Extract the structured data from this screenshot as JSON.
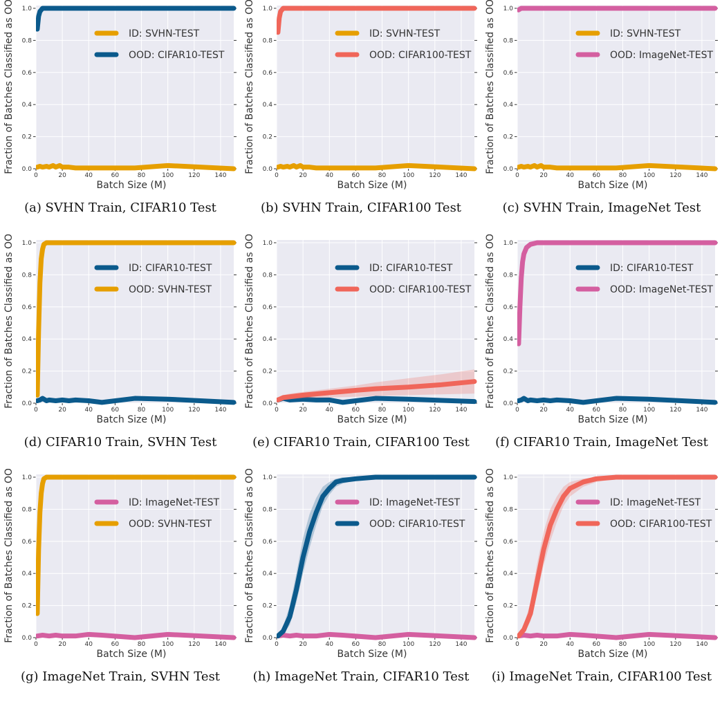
{
  "colors": {
    "svhn": "#e69f00",
    "cifar10": "#0b5a8c",
    "cifar100": "#f0665a",
    "imagenet": "#d45fa0",
    "plot_bg": "#eaeaf2",
    "grid": "#ffffff"
  },
  "chart_data": [
    {
      "type": "line",
      "caption": "(a) SVHN Train, CIFAR10 Test",
      "xlabel": "Batch Size (M)",
      "ylabel": "Fraction of Batches Classified as OOD",
      "xlim": [
        0,
        150
      ],
      "ylim": [
        0,
        1.0
      ],
      "xticks": [
        0,
        20,
        40,
        60,
        80,
        100,
        120,
        140
      ],
      "yticks": [
        0.0,
        0.2,
        0.4,
        0.6,
        0.8,
        1.0
      ],
      "grid": true,
      "legend": "top-right",
      "series": [
        {
          "name": "ID: SVHN-TEST",
          "color": "#e69f00",
          "x": [
            1,
            3,
            5,
            8,
            10,
            13,
            15,
            18,
            20,
            25,
            30,
            40,
            50,
            75,
            100,
            150
          ],
          "y": [
            0.01,
            0.015,
            0.01,
            0.015,
            0.01,
            0.02,
            0.01,
            0.02,
            0.01,
            0.01,
            0.005,
            0.005,
            0.005,
            0.005,
            0.02,
            0.0
          ]
        },
        {
          "name": "OOD: CIFAR10-TEST",
          "color": "#0b5a8c",
          "x": [
            1,
            2,
            3,
            5,
            8,
            10,
            15,
            20,
            40,
            60,
            100,
            150
          ],
          "y": [
            0.87,
            0.95,
            0.98,
            1.0,
            1.0,
            1.0,
            1.0,
            1.0,
            1.0,
            1.0,
            1.0,
            1.0
          ]
        }
      ]
    },
    {
      "type": "line",
      "caption": "(b) SVHN Train, CIFAR100 Test",
      "xlabel": "Batch Size (M)",
      "ylabel": "Fraction of Batches Classified as OOD",
      "xlim": [
        0,
        150
      ],
      "ylim": [
        0,
        1.0
      ],
      "xticks": [
        0,
        20,
        40,
        60,
        80,
        100,
        120,
        140
      ],
      "yticks": [
        0.0,
        0.2,
        0.4,
        0.6,
        0.8,
        1.0
      ],
      "grid": true,
      "legend": "top-right",
      "series": [
        {
          "name": "ID: SVHN-TEST",
          "color": "#e69f00",
          "x": [
            1,
            3,
            5,
            8,
            10,
            13,
            15,
            18,
            20,
            25,
            30,
            40,
            50,
            75,
            100,
            150
          ],
          "y": [
            0.01,
            0.015,
            0.01,
            0.015,
            0.01,
            0.02,
            0.01,
            0.02,
            0.01,
            0.01,
            0.005,
            0.005,
            0.005,
            0.005,
            0.02,
            0.0
          ]
        },
        {
          "name": "OOD: CIFAR100-TEST",
          "color": "#f0665a",
          "x": [
            1,
            2,
            3,
            5,
            8,
            10,
            15,
            20,
            40,
            60,
            100,
            150
          ],
          "y": [
            0.85,
            0.94,
            0.98,
            1.0,
            1.0,
            1.0,
            1.0,
            1.0,
            1.0,
            1.0,
            1.0,
            1.0
          ]
        }
      ]
    },
    {
      "type": "line",
      "caption": "(c) SVHN Train, ImageNet Test",
      "xlabel": "Batch Size (M)",
      "ylabel": "Fraction of Batches Classified as OOD",
      "xlim": [
        0,
        150
      ],
      "ylim": [
        0,
        1.0
      ],
      "xticks": [
        0,
        20,
        40,
        60,
        80,
        100,
        120,
        140
      ],
      "yticks": [
        0.0,
        0.2,
        0.4,
        0.6,
        0.8,
        1.0
      ],
      "grid": true,
      "legend": "top-right",
      "series": [
        {
          "name": "ID: SVHN-TEST",
          "color": "#e69f00",
          "x": [
            1,
            3,
            5,
            8,
            10,
            13,
            15,
            18,
            20,
            25,
            30,
            40,
            50,
            75,
            100,
            150
          ],
          "y": [
            0.01,
            0.015,
            0.01,
            0.015,
            0.01,
            0.02,
            0.01,
            0.02,
            0.01,
            0.01,
            0.005,
            0.005,
            0.005,
            0.005,
            0.02,
            0.0
          ]
        },
        {
          "name": "OOD: ImageNet-TEST",
          "color": "#d45fa0",
          "x": [
            1,
            3,
            5,
            10,
            20,
            40,
            60,
            100,
            150
          ],
          "y": [
            0.99,
            1.0,
            1.0,
            1.0,
            1.0,
            1.0,
            1.0,
            1.0,
            1.0
          ]
        }
      ]
    },
    {
      "type": "line",
      "caption": "(d) CIFAR10 Train, SVHN Test",
      "xlabel": "Batch Size (M)",
      "ylabel": "Fraction of Batches Classified as OOD",
      "xlim": [
        0,
        150
      ],
      "ylim": [
        0,
        1.0
      ],
      "xticks": [
        0,
        20,
        40,
        60,
        80,
        100,
        120,
        140
      ],
      "yticks": [
        0.0,
        0.2,
        0.4,
        0.6,
        0.8,
        1.0
      ],
      "grid": true,
      "legend": "top-right",
      "series": [
        {
          "name": "ID: CIFAR10-TEST",
          "color": "#0b5a8c",
          "x": [
            1,
            3,
            5,
            8,
            10,
            15,
            20,
            25,
            30,
            40,
            50,
            75,
            100,
            150
          ],
          "y": [
            0.015,
            0.02,
            0.03,
            0.015,
            0.02,
            0.015,
            0.02,
            0.015,
            0.02,
            0.015,
            0.005,
            0.03,
            0.025,
            0.005
          ]
        },
        {
          "name": "OOD: SVHN-TEST",
          "color": "#e69f00",
          "x": [
            1,
            2,
            3,
            4,
            5,
            6,
            8,
            10,
            15,
            20,
            40,
            60,
            100,
            150
          ],
          "y": [
            0.05,
            0.45,
            0.75,
            0.9,
            0.96,
            0.99,
            1.0,
            1.0,
            1.0,
            1.0,
            1.0,
            1.0,
            1.0,
            1.0
          ]
        }
      ]
    },
    {
      "type": "line",
      "caption": "(e) CIFAR10 Train, CIFAR100 Test",
      "xlabel": "Batch Size (M)",
      "ylabel": "Fraction of Batches Classified as OOD",
      "xlim": [
        0,
        150
      ],
      "ylim": [
        0,
        1.0
      ],
      "xticks": [
        0,
        20,
        40,
        60,
        80,
        100,
        120,
        140
      ],
      "yticks": [
        0.0,
        0.2,
        0.4,
        0.6,
        0.8,
        1.0
      ],
      "grid": true,
      "legend": "top-right",
      "series": [
        {
          "name": "ID: CIFAR10-TEST",
          "color": "#0b5a8c",
          "x": [
            1,
            5,
            10,
            20,
            30,
            40,
            50,
            75,
            100,
            150
          ],
          "y": [
            0.02,
            0.03,
            0.02,
            0.025,
            0.02,
            0.02,
            0.005,
            0.03,
            0.025,
            0.01
          ]
        },
        {
          "name": "OOD: CIFAR100-TEST",
          "color": "#f0665a",
          "x": [
            1,
            5,
            10,
            20,
            40,
            60,
            75,
            100,
            125,
            150
          ],
          "y": [
            0.02,
            0.035,
            0.04,
            0.05,
            0.065,
            0.08,
            0.09,
            0.1,
            0.115,
            0.135
          ],
          "band_lo": [
            0.01,
            0.02,
            0.025,
            0.03,
            0.035,
            0.04,
            0.045,
            0.05,
            0.055,
            0.06
          ],
          "band_hi": [
            0.03,
            0.05,
            0.06,
            0.07,
            0.09,
            0.11,
            0.13,
            0.155,
            0.18,
            0.21
          ]
        }
      ]
    },
    {
      "type": "line",
      "caption": "(f) CIFAR10 Train, ImageNet Test",
      "xlabel": "Batch Size (M)",
      "ylabel": "Fraction of Batches Classified as OOD",
      "xlim": [
        0,
        150
      ],
      "ylim": [
        0,
        1.0
      ],
      "xticks": [
        0,
        20,
        40,
        60,
        80,
        100,
        120,
        140
      ],
      "yticks": [
        0.0,
        0.2,
        0.4,
        0.6,
        0.8,
        1.0
      ],
      "grid": true,
      "legend": "top-right",
      "series": [
        {
          "name": "ID: CIFAR10-TEST",
          "color": "#0b5a8c",
          "x": [
            1,
            3,
            5,
            8,
            10,
            15,
            20,
            25,
            30,
            40,
            50,
            75,
            100,
            150
          ],
          "y": [
            0.015,
            0.02,
            0.03,
            0.015,
            0.02,
            0.015,
            0.02,
            0.015,
            0.02,
            0.015,
            0.005,
            0.03,
            0.025,
            0.005
          ]
        },
        {
          "name": "OOD: ImageNet-TEST",
          "color": "#d45fa0",
          "x": [
            1,
            2,
            3,
            4,
            5,
            7,
            10,
            15,
            20,
            40,
            60,
            100,
            150
          ],
          "y": [
            0.37,
            0.6,
            0.78,
            0.88,
            0.93,
            0.97,
            0.99,
            1.0,
            1.0,
            1.0,
            1.0,
            1.0,
            1.0
          ]
        }
      ]
    },
    {
      "type": "line",
      "caption": "(g) ImageNet Train, SVHN Test",
      "xlabel": "Batch Size (M)",
      "ylabel": "Fraction of Batches Classified as OOD",
      "xlim": [
        0,
        150
      ],
      "ylim": [
        0,
        1.0
      ],
      "xticks": [
        0,
        20,
        40,
        60,
        80,
        100,
        120,
        140
      ],
      "yticks": [
        0.0,
        0.2,
        0.4,
        0.6,
        0.8,
        1.0
      ],
      "grid": true,
      "legend": "top-right",
      "series": [
        {
          "name": "ID: ImageNet-TEST",
          "color": "#d45fa0",
          "x": [
            1,
            5,
            10,
            15,
            20,
            30,
            40,
            50,
            75,
            100,
            150
          ],
          "y": [
            0.01,
            0.015,
            0.01,
            0.015,
            0.01,
            0.01,
            0.02,
            0.015,
            0.0,
            0.02,
            0.0
          ]
        },
        {
          "name": "OOD: SVHN-TEST",
          "color": "#e69f00",
          "x": [
            1,
            2,
            3,
            4,
            5,
            6,
            8,
            10,
            20,
            40,
            60,
            100,
            150
          ],
          "y": [
            0.15,
            0.55,
            0.78,
            0.9,
            0.96,
            0.99,
            1.0,
            1.0,
            1.0,
            1.0,
            1.0,
            1.0,
            1.0
          ]
        }
      ]
    },
    {
      "type": "line",
      "caption": "(h) ImageNet Train, CIFAR10 Test",
      "xlabel": "Batch Size (M)",
      "ylabel": "Fraction of Batches Classified as OOD",
      "xlim": [
        0,
        150
      ],
      "ylim": [
        0,
        1.0
      ],
      "xticks": [
        0,
        20,
        40,
        60,
        80,
        100,
        120,
        140
      ],
      "yticks": [
        0.0,
        0.2,
        0.4,
        0.6,
        0.8,
        1.0
      ],
      "grid": true,
      "legend": "top-right",
      "series": [
        {
          "name": "ID: ImageNet-TEST",
          "color": "#d45fa0",
          "x": [
            1,
            5,
            10,
            15,
            20,
            30,
            40,
            50,
            75,
            100,
            150
          ],
          "y": [
            0.01,
            0.015,
            0.01,
            0.015,
            0.01,
            0.01,
            0.02,
            0.015,
            0.0,
            0.02,
            0.0
          ]
        },
        {
          "name": "OOD: CIFAR10-TEST",
          "color": "#0b5a8c",
          "x": [
            1,
            5,
            10,
            15,
            20,
            25,
            30,
            35,
            40,
            45,
            50,
            60,
            75,
            100,
            150
          ],
          "y": [
            0.01,
            0.04,
            0.13,
            0.3,
            0.5,
            0.66,
            0.78,
            0.88,
            0.93,
            0.97,
            0.98,
            0.99,
            1.0,
            1.0,
            1.0
          ],
          "band_lo": [
            0.0,
            0.02,
            0.08,
            0.22,
            0.4,
            0.56,
            0.7,
            0.82,
            0.89,
            0.94,
            0.96,
            0.98,
            0.99,
            1.0,
            1.0
          ],
          "band_hi": [
            0.02,
            0.07,
            0.2,
            0.4,
            0.62,
            0.77,
            0.87,
            0.94,
            0.97,
            0.99,
            1.0,
            1.0,
            1.0,
            1.0,
            1.0
          ]
        }
      ]
    },
    {
      "type": "line",
      "caption": "(i) ImageNet Train, CIFAR100 Test",
      "xlabel": "Batch Size (M)",
      "ylabel": "Fraction of Batches Classified as OOD",
      "xlim": [
        0,
        150
      ],
      "ylim": [
        0,
        1.0
      ],
      "xticks": [
        0,
        20,
        40,
        60,
        80,
        100,
        120,
        140
      ],
      "yticks": [
        0.0,
        0.2,
        0.4,
        0.6,
        0.8,
        1.0
      ],
      "grid": true,
      "legend": "top-right",
      "series": [
        {
          "name": "ID: ImageNet-TEST",
          "color": "#d45fa0",
          "x": [
            1,
            5,
            10,
            15,
            20,
            30,
            40,
            50,
            75,
            100,
            150
          ],
          "y": [
            0.01,
            0.015,
            0.01,
            0.015,
            0.01,
            0.01,
            0.02,
            0.015,
            0.0,
            0.02,
            0.0
          ]
        },
        {
          "name": "OOD: CIFAR100-TEST",
          "color": "#f0665a",
          "x": [
            1,
            5,
            10,
            15,
            20,
            25,
            30,
            35,
            40,
            50,
            60,
            75,
            100,
            150
          ],
          "y": [
            0.01,
            0.05,
            0.15,
            0.35,
            0.55,
            0.7,
            0.8,
            0.88,
            0.93,
            0.97,
            0.99,
            1.0,
            1.0,
            1.0
          ],
          "band_lo": [
            0.0,
            0.03,
            0.1,
            0.27,
            0.45,
            0.6,
            0.72,
            0.82,
            0.88,
            0.94,
            0.97,
            0.99,
            1.0,
            1.0
          ],
          "band_hi": [
            0.02,
            0.08,
            0.22,
            0.46,
            0.66,
            0.8,
            0.88,
            0.94,
            0.97,
            0.99,
            1.0,
            1.0,
            1.0,
            1.0
          ]
        }
      ]
    }
  ]
}
